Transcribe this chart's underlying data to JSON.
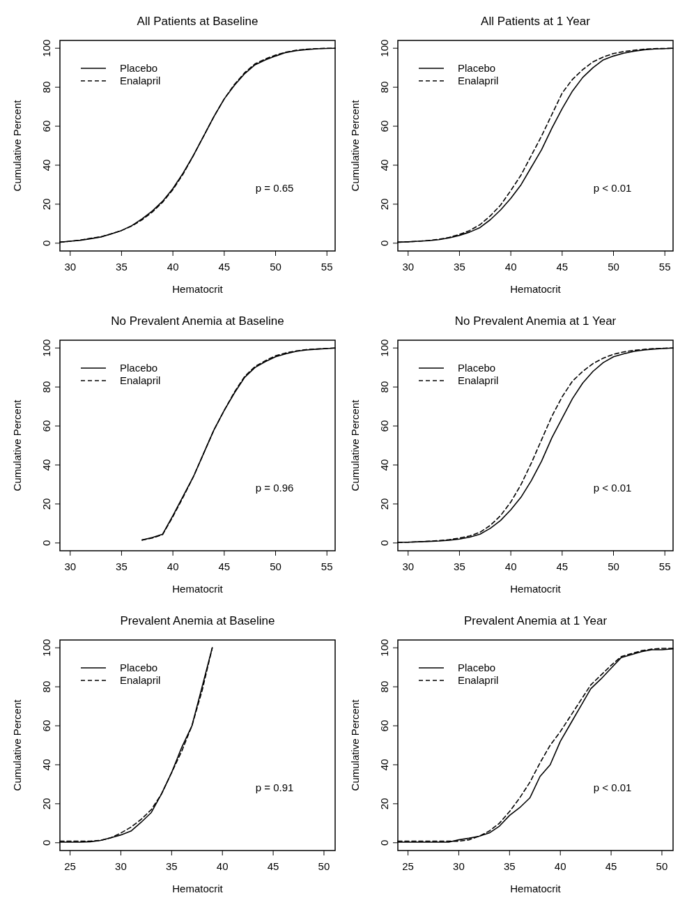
{
  "chart_data": [
    {
      "type": "line",
      "title": "All Patients at Baseline",
      "xlabel": "Hematocrit",
      "ylabel": "Cumulative Percent",
      "xlim": [
        29,
        55.8
      ],
      "xticks": [
        30,
        35,
        40,
        45,
        50,
        55
      ],
      "ylim": [
        -4,
        104
      ],
      "yticks": [
        0,
        20,
        40,
        60,
        80,
        100
      ],
      "legend": "top left",
      "annotations": [
        "p = 0.65"
      ],
      "series": [
        {
          "name": "Placebo",
          "color": "#000000",
          "line_style": "solid",
          "x": [
            29,
            30,
            31,
            32,
            33,
            34,
            35,
            36,
            37,
            38,
            39,
            40,
            41,
            42,
            43,
            44,
            45,
            46,
            47,
            48,
            49,
            50,
            51,
            52,
            53,
            54,
            55,
            55.8
          ],
          "values": [
            0.5,
            1,
            1.5,
            2.3,
            3.2,
            4.8,
            6.5,
            9,
            12.5,
            16.5,
            21.5,
            28,
            36,
            45,
            55,
            65,
            74,
            81,
            87,
            91.5,
            94,
            96,
            97.8,
            98.7,
            99.3,
            99.7,
            99.9,
            100
          ]
        },
        {
          "name": "Enalapril",
          "color": "#000000",
          "line_style": "dashed",
          "x": [
            29,
            30,
            31,
            32,
            33,
            34,
            35,
            36,
            37,
            38,
            39,
            40,
            41,
            42,
            43,
            44,
            45,
            46,
            47,
            48,
            49,
            50,
            51,
            52,
            53,
            54,
            55,
            55.8
          ],
          "values": [
            0.5,
            1,
            1.6,
            2.5,
            3.3,
            4.8,
            6.5,
            8.8,
            12,
            16,
            21,
            27.5,
            35.5,
            45,
            55,
            65,
            74,
            81.5,
            87.5,
            92,
            94.5,
            96.5,
            98,
            99,
            99.5,
            99.8,
            100,
            100
          ]
        }
      ]
    },
    {
      "type": "line",
      "title": "All Patients at 1 Year",
      "xlabel": "Hematocrit",
      "ylabel": "Cumulative Percent",
      "xlim": [
        29,
        55.8
      ],
      "xticks": [
        30,
        35,
        40,
        45,
        50,
        55
      ],
      "ylim": [
        -4,
        104
      ],
      "yticks": [
        0,
        20,
        40,
        60,
        80,
        100
      ],
      "legend": "top left",
      "annotations": [
        "p < 0.01"
      ],
      "series": [
        {
          "name": "Placebo",
          "color": "#000000",
          "line_style": "solid",
          "x": [
            29,
            30,
            31,
            32,
            33,
            34,
            35,
            36,
            37,
            38,
            39,
            40,
            41,
            42,
            43,
            44,
            45,
            46,
            47,
            48,
            49,
            50,
            51,
            52,
            53,
            54,
            55,
            55.8
          ],
          "values": [
            0.5,
            0.7,
            1,
            1.3,
            1.8,
            2.7,
            4,
            5.7,
            8,
            12,
            17,
            23,
            30,
            39,
            48,
            59,
            69,
            78,
            85,
            90,
            94,
            96,
            97.5,
            98.5,
            99.2,
            99.6,
            99.8,
            100
          ]
        },
        {
          "name": "Enalapril",
          "color": "#000000",
          "line_style": "dashed",
          "x": [
            29,
            30,
            31,
            32,
            33,
            34,
            35,
            36,
            37,
            38,
            39,
            40,
            41,
            42,
            43,
            44,
            45,
            46,
            47,
            48,
            49,
            50,
            51,
            52,
            53,
            54,
            55,
            55.8
          ],
          "values": [
            0.5,
            0.7,
            1,
            1.4,
            2,
            3,
            4.5,
            6.5,
            9.5,
            14,
            19.5,
            27,
            35,
            45,
            55,
            66,
            77,
            84,
            89,
            93,
            95.5,
            97.3,
            98.3,
            99,
            99.5,
            99.8,
            99.9,
            100
          ]
        }
      ]
    },
    {
      "type": "line",
      "title": "No Prevalent Anemia at Baseline",
      "xlabel": "Hematocrit",
      "ylabel": "Cumulative Percent",
      "xlim": [
        29,
        55.8
      ],
      "xticks": [
        30,
        35,
        40,
        45,
        50,
        55
      ],
      "ylim": [
        -4,
        104
      ],
      "yticks": [
        0,
        20,
        40,
        60,
        80,
        100
      ],
      "legend": "top left",
      "annotations": [
        "p = 0.96"
      ],
      "series": [
        {
          "name": "Placebo",
          "color": "#000000",
          "line_style": "solid",
          "x": [
            37,
            38,
            39,
            40,
            41,
            42,
            43,
            44,
            45,
            46,
            47,
            48,
            49,
            50,
            51,
            52,
            53,
            54,
            55,
            55.8
          ],
          "values": [
            1.5,
            2.8,
            4.5,
            14,
            24,
            34,
            46,
            58,
            68,
            77,
            85,
            90,
            93,
            95.5,
            97,
            98.3,
            99,
            99.4,
            99.7,
            100
          ]
        },
        {
          "name": "Enalapril",
          "color": "#000000",
          "line_style": "dashed",
          "x": [
            37,
            38,
            39,
            40,
            41,
            42,
            43,
            44,
            45,
            46,
            47,
            48,
            49,
            50,
            51,
            52,
            53,
            54,
            55,
            55.8
          ],
          "values": [
            1.5,
            2.5,
            4.3,
            13.5,
            23.5,
            34,
            46,
            58,
            68,
            77.5,
            85.5,
            90.5,
            93.5,
            96,
            97.5,
            98.5,
            99.2,
            99.5,
            99.8,
            100
          ]
        }
      ]
    },
    {
      "type": "line",
      "title": "No Prevalent Anemia at 1 Year",
      "xlabel": "Hematocrit",
      "ylabel": "Cumulative Percent",
      "xlim": [
        29,
        55.8
      ],
      "xticks": [
        30,
        35,
        40,
        45,
        50,
        55
      ],
      "ylim": [
        -4,
        104
      ],
      "yticks": [
        0,
        20,
        40,
        60,
        80,
        100
      ],
      "legend": "top left",
      "annotations": [
        "p < 0.01"
      ],
      "series": [
        {
          "name": "Placebo",
          "color": "#000000",
          "line_style": "solid",
          "x": [
            29,
            30,
            31,
            32,
            33,
            34,
            35,
            36,
            37,
            38,
            39,
            40,
            41,
            42,
            43,
            44,
            45,
            46,
            47,
            48,
            49,
            50,
            51,
            52,
            53,
            54,
            55,
            55.8
          ],
          "values": [
            0.3,
            0.4,
            0.6,
            0.8,
            1,
            1.4,
            2,
            3,
            4.5,
            7.5,
            11.5,
            17,
            23.5,
            32,
            42,
            54,
            64,
            74,
            82,
            88,
            92.5,
            95.5,
            97,
            98.3,
            99,
            99.5,
            99.8,
            100
          ]
        },
        {
          "name": "Enalapril",
          "color": "#000000",
          "line_style": "dashed",
          "x": [
            29,
            30,
            31,
            32,
            33,
            34,
            35,
            36,
            37,
            38,
            39,
            40,
            41,
            42,
            43,
            44,
            45,
            46,
            47,
            48,
            49,
            50,
            51,
            52,
            53,
            54,
            55,
            55.8
          ],
          "values": [
            0.3,
            0.4,
            0.6,
            0.9,
            1.2,
            1.7,
            2.5,
            3.6,
            5.5,
            9,
            14,
            21,
            30,
            41,
            53,
            65,
            75,
            83,
            88,
            92,
            94.8,
            96.8,
            98,
            98.8,
            99.3,
            99.7,
            99.9,
            100
          ]
        }
      ]
    },
    {
      "type": "line",
      "title": "Prevalent Anemia at Baseline",
      "xlabel": "Hematocrit",
      "ylabel": "Cumulative Percent",
      "xlim": [
        24,
        51.1
      ],
      "xticks": [
        25,
        30,
        35,
        40,
        45,
        50
      ],
      "ylim": [
        -4,
        104
      ],
      "yticks": [
        0,
        20,
        40,
        60,
        80,
        100
      ],
      "legend": "top left",
      "annotations": [
        "p = 0.91"
      ],
      "series": [
        {
          "name": "Placebo",
          "color": "#000000",
          "line_style": "solid",
          "x": [
            24,
            25,
            26,
            27,
            28,
            29,
            30,
            31,
            32,
            33,
            34,
            35,
            36,
            37,
            38,
            39
          ],
          "values": [
            0.3,
            0.3,
            0.3,
            0.5,
            1.2,
            2.5,
            4,
            6,
            10.5,
            15.5,
            25,
            36,
            49,
            60,
            80,
            100
          ]
        },
        {
          "name": "Enalapril",
          "color": "#000000",
          "line_style": "dashed",
          "x": [
            24,
            25,
            26,
            27,
            28,
            29,
            30,
            31,
            32,
            33,
            34,
            35,
            36,
            37,
            38,
            39
          ],
          "values": [
            0.8,
            0.8,
            0.8,
            0.8,
            1.2,
            2.5,
            5,
            8,
            12,
            17,
            25,
            36,
            47,
            60,
            78,
            100
          ]
        }
      ]
    },
    {
      "type": "line",
      "title": "Prevalent Anemia at 1 Year",
      "xlabel": "Hematocrit",
      "ylabel": "Cumulative Percent",
      "xlim": [
        24,
        51.1
      ],
      "xticks": [
        25,
        30,
        35,
        40,
        45,
        50
      ],
      "ylim": [
        -4,
        104
      ],
      "yticks": [
        0,
        20,
        40,
        60,
        80,
        100
      ],
      "legend": "top left",
      "annotations": [
        "p < 0.01"
      ],
      "series": [
        {
          "name": "Placebo",
          "color": "#000000",
          "line_style": "solid",
          "x": [
            24,
            25,
            26,
            27,
            28,
            29,
            30,
            31,
            32,
            33,
            34,
            35,
            36,
            37,
            38,
            39,
            40,
            41,
            42,
            43,
            44,
            45,
            46,
            47,
            48,
            49,
            50,
            51.1
          ],
          "values": [
            0.3,
            0.3,
            0.3,
            0.3,
            0.3,
            0.3,
            1.5,
            2.3,
            3.3,
            5,
            8.5,
            14,
            18,
            23,
            34,
            40,
            52,
            61,
            70,
            79,
            84,
            89.5,
            95,
            96.5,
            98,
            99,
            99,
            99.5
          ]
        },
        {
          "name": "Enalapril",
          "color": "#000000",
          "line_style": "dashed",
          "x": [
            24,
            25,
            26,
            27,
            28,
            29,
            30,
            31,
            32,
            33,
            34,
            35,
            36,
            37,
            38,
            39,
            40,
            41,
            42,
            43,
            44,
            45,
            46,
            47,
            48,
            49,
            50,
            51.1
          ],
          "values": [
            0.8,
            0.8,
            0.8,
            0.8,
            0.8,
            0.8,
            0.8,
            1.5,
            3.3,
            6,
            10,
            16,
            23,
            31,
            41,
            50,
            57,
            65,
            73,
            81,
            86,
            91,
            95.5,
            97,
            98.5,
            99.3,
            99.7,
            99.7
          ]
        }
      ]
    }
  ]
}
